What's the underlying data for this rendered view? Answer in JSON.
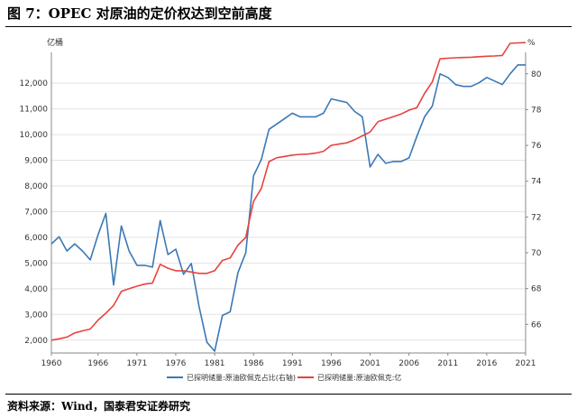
{
  "figure": {
    "title": "图 7：OPEC 对原油的定价权达到空前高度",
    "source": "资料来源：Wind，国泰君安证券研究"
  },
  "chart_data": {
    "type": "line",
    "left_unit": "亿桶",
    "right_unit": "%",
    "x_ticks": [
      "1960",
      "1966",
      "1971",
      "1976",
      "1981",
      "1986",
      "1991",
      "1996",
      "2001",
      "2006",
      "2011",
      "2016",
      "2021"
    ],
    "xlim": [
      1960,
      2021
    ],
    "ylim_left": [
      1500,
      13200
    ],
    "ylim_right": [
      64.4,
      81.2
    ],
    "left_ticks": [
      "2,000",
      "3,000",
      "4,000",
      "5,000",
      "6,000",
      "7,000",
      "8,000",
      "9,000",
      "10,000",
      "11,000",
      "12,000"
    ],
    "right_ticks": [
      "66",
      "68",
      "70",
      "72",
      "74",
      "76",
      "78",
      "80"
    ],
    "grid": "horizontal",
    "legend_position": "bottom",
    "series": [
      {
        "name": "已探明储量:原油欧佩克占比(右轴)",
        "axis": "right",
        "color": "#3a78b5",
        "x": [
          1960,
          1961,
          1962,
          1963,
          1964,
          1965,
          1966,
          1967,
          1968,
          1969,
          1970,
          1971,
          1972,
          1973,
          1974,
          1975,
          1976,
          1977,
          1978,
          1979,
          1980,
          1981,
          1982,
          1983,
          1984,
          1985,
          1986,
          1987,
          1988,
          1989,
          1990,
          1991,
          1992,
          1993,
          1994,
          1995,
          1996,
          1997,
          1998,
          1999,
          2000,
          2001,
          2002,
          2003,
          2004,
          2005,
          2006,
          2007,
          2008,
          2009,
          2010,
          2011,
          2012,
          2013,
          2014,
          2015,
          2016,
          2017,
          2018,
          2019,
          2020,
          2021
        ],
        "values": [
          70.5,
          70.9,
          70.1,
          70.5,
          70.1,
          69.6,
          71.0,
          72.2,
          68.2,
          71.5,
          70.1,
          69.3,
          69.3,
          69.2,
          71.8,
          69.9,
          70.2,
          68.8,
          69.4,
          67.0,
          65.0,
          64.5,
          66.5,
          66.7,
          68.9,
          70.0,
          74.3,
          75.2,
          76.9,
          77.2,
          77.5,
          77.8,
          77.6,
          77.6,
          77.6,
          77.8,
          78.6,
          78.5,
          78.4,
          77.9,
          77.6,
          74.8,
          75.5,
          75.0,
          75.1,
          75.1,
          75.3,
          76.5,
          77.6,
          78.2,
          80.0,
          79.8,
          79.4,
          79.3,
          79.3,
          79.5,
          79.8,
          79.6,
          79.4,
          80.0,
          80.5,
          80.5
        ]
      },
      {
        "name": "已探明储量:原油欧佩克:亿",
        "axis": "left",
        "color": "#e8413f",
        "x": [
          1960,
          1961,
          1962,
          1963,
          1964,
          1965,
          1966,
          1967,
          1968,
          1969,
          1970,
          1971,
          1972,
          1973,
          1974,
          1975,
          1976,
          1977,
          1978,
          1979,
          1980,
          1981,
          1982,
          1983,
          1984,
          1985,
          1986,
          1987,
          1988,
          1989,
          1990,
          1991,
          1992,
          1993,
          1994,
          1995,
          1996,
          1997,
          1998,
          1999,
          2000,
          2001,
          2002,
          2003,
          2004,
          2005,
          2006,
          2007,
          2008,
          2009,
          2010,
          2011,
          2012,
          2013,
          2014,
          2015,
          2016,
          2017,
          2018,
          2019,
          2020,
          2021
        ],
        "values": [
          2000,
          2050,
          2120,
          2280,
          2360,
          2430,
          2780,
          3050,
          3350,
          3900,
          4000,
          4100,
          4180,
          4220,
          4950,
          4800,
          4700,
          4700,
          4650,
          4600,
          4600,
          4700,
          5100,
          5200,
          5700,
          6000,
          7400,
          7900,
          8950,
          9100,
          9150,
          9200,
          9230,
          9240,
          9280,
          9350,
          9580,
          9630,
          9680,
          9800,
          9950,
          10100,
          10500,
          10600,
          10700,
          10800,
          10950,
          11050,
          11600,
          12050,
          12950,
          12970,
          12990,
          13000,
          13010,
          13030,
          13050,
          13060,
          13080,
          13550,
          13570,
          13580
        ]
      }
    ]
  }
}
